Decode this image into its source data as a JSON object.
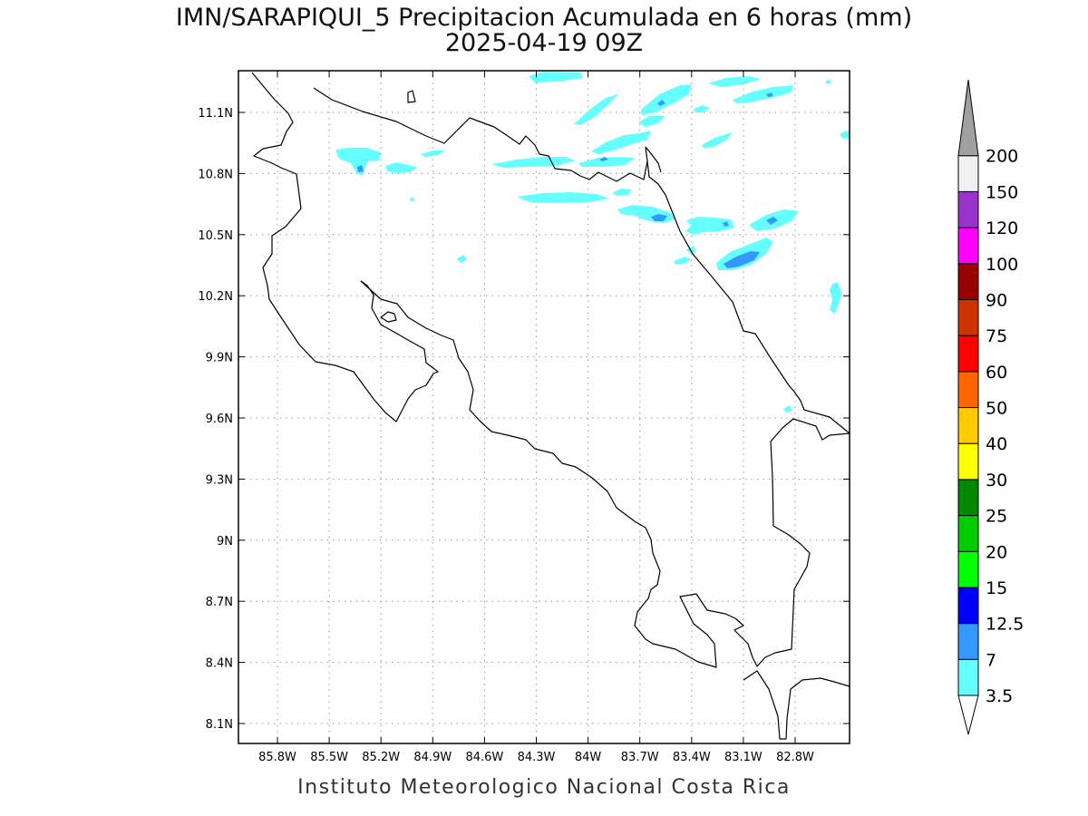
{
  "title": {
    "line1": "IMN/SARAPIQUI_5 Precipitacion Acumulada en 6 horas (mm)",
    "line2": "2025-04-19 09Z"
  },
  "footer": "Instituto Meteorologico Nacional Costa Rica",
  "map": {
    "lon_ticks": [
      "85.8W",
      "85.5W",
      "85.2W",
      "84.9W",
      "84.6W",
      "84.3W",
      "84W",
      "83.7W",
      "83.4W",
      "83.1W",
      "82.8W"
    ],
    "lat_ticks": [
      "11.1N",
      "10.8N",
      "10.5N",
      "10.2N",
      "9.9N",
      "9.6N",
      "9.3N",
      "9N",
      "8.7N",
      "8.4N",
      "8.1N"
    ],
    "grid": "dotted",
    "colors": {
      "coastline": "#000000",
      "light_rain": "#66ffff",
      "moderate_rain": "#3399ff"
    }
  },
  "colorbar": {
    "labels": [
      "3.5",
      "7",
      "12.5",
      "15",
      "20",
      "25",
      "30",
      "40",
      "50",
      "60",
      "75",
      "90",
      "100",
      "120",
      "150",
      "200"
    ],
    "colors": [
      "#66ffff",
      "#3399ff",
      "#0000ff",
      "#00ff00",
      "#00cc00",
      "#008800",
      "#ffff00",
      "#ffcc00",
      "#ff6600",
      "#ff0000",
      "#cc3300",
      "#990000",
      "#ff00ff",
      "#9933cc",
      "#f0f0f0",
      "#a0a0a0"
    ]
  }
}
